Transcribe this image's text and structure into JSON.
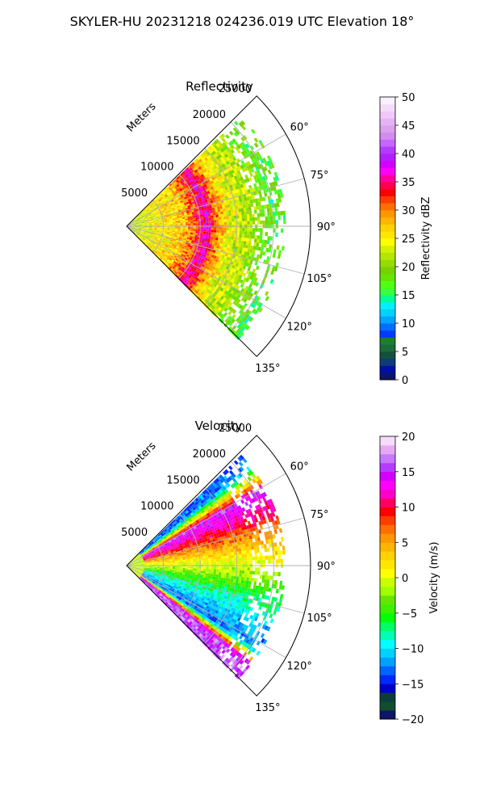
{
  "figure": {
    "title": "SKYLER-HU  20231218  024236.019 UTC Elevation 18°"
  },
  "chart_data": [
    {
      "type": "polar-sector",
      "title": "Reflectivity",
      "radial_label": "Meters",
      "radial_ticks": [
        5000,
        10000,
        15000,
        20000,
        25000
      ],
      "rlim": [
        0,
        25000
      ],
      "angular_ticks": [
        "60°",
        "75°",
        "90°",
        "105°",
        "120°",
        "135°"
      ],
      "angular_range_deg": [
        45,
        135
      ],
      "grid": true,
      "colorbar": {
        "label": "Reflectivity dBZ",
        "min": 0,
        "max": 50,
        "steps": 40,
        "ticks": [
          0,
          5,
          10,
          15,
          20,
          25,
          30,
          35,
          40,
          45,
          50
        ],
        "colors": [
          "#0c1566",
          "#000fa5",
          "#0d3c78",
          "#14503c",
          "#1b6b3b",
          "#1d7f30",
          "#003cff",
          "#006eff",
          "#00a5ff",
          "#00d2ff",
          "#00f0ff",
          "#00ff96",
          "#3cff3c",
          "#50ff14",
          "#64e600",
          "#78d200",
          "#96dc00",
          "#b4e600",
          "#d2f000",
          "#ffff00",
          "#ffe600",
          "#ffd200",
          "#ffb400",
          "#ff9600",
          "#ff6e00",
          "#ff3c00",
          "#ff0000",
          "#ff0050",
          "#ff00a0",
          "#ff00ff",
          "#d200ff",
          "#b41eff",
          "#b43cff",
          "#c864ff",
          "#d28cf0",
          "#dca0f0",
          "#e6b4f5",
          "#f0c8fa",
          "#f5dcfa",
          "#faf0ff"
        ]
      },
      "range_profile": [
        {
          "range_m": 1000,
          "dbz": 22
        },
        {
          "range_m": 4000,
          "dbz": 25
        },
        {
          "range_m": 7500,
          "dbz": 27
        },
        {
          "range_m": 9500,
          "dbz": 32
        },
        {
          "range_m": 10700,
          "dbz": 37
        },
        {
          "range_m": 12000,
          "dbz": 30
        },
        {
          "range_m": 14000,
          "dbz": 24
        },
        {
          "range_m": 17000,
          "dbz": 21
        },
        {
          "range_m": 20000,
          "dbz": 17
        }
      ],
      "echo_extent_m": 21500
    },
    {
      "type": "polar-sector",
      "title": "Velocity",
      "radial_label": "Meters",
      "radial_ticks": [
        5000,
        10000,
        15000,
        20000,
        25000
      ],
      "rlim": [
        0,
        25000
      ],
      "angular_ticks": [
        "60°",
        "75°",
        "90°",
        "105°",
        "120°",
        "135°"
      ],
      "angular_range_deg": [
        45,
        135
      ],
      "grid": true,
      "colorbar": {
        "label": "Velocity (m/s)",
        "min": -20,
        "max": 20,
        "steps": 32,
        "ticks": [
          -20,
          -15,
          -10,
          -5,
          0,
          5,
          10,
          15,
          20
        ],
        "colors": [
          "#0c1566",
          "#104e2e",
          "#0c3c3c",
          "#0000c8",
          "#0028ff",
          "#0064ff",
          "#00a0ff",
          "#00d2ff",
          "#00ffff",
          "#00ffb4",
          "#00ff64",
          "#00ff00",
          "#3cf000",
          "#64e600",
          "#a0ff00",
          "#c8ff00",
          "#ffff00",
          "#ffe600",
          "#ffd200",
          "#ffb400",
          "#ff9600",
          "#ff6e00",
          "#ff3c00",
          "#ff0000",
          "#ff0064",
          "#ff00c8",
          "#ff00ff",
          "#d200ff",
          "#b43cff",
          "#c878ff",
          "#e6aaf5",
          "#f5dcfa"
        ]
      },
      "azimuth_profile": [
        {
          "azimuth_deg": 50,
          "velocity_ms": -13
        },
        {
          "azimuth_deg": 60,
          "velocity_ms": 15
        },
        {
          "azimuth_deg": 68,
          "velocity_ms": 11
        },
        {
          "azimuth_deg": 78,
          "velocity_ms": 5
        },
        {
          "azimuth_deg": 86,
          "velocity_ms": 1
        },
        {
          "azimuth_deg": 94,
          "velocity_ms": -2
        },
        {
          "azimuth_deg": 104,
          "velocity_ms": -7
        },
        {
          "azimuth_deg": 114,
          "velocity_ms": -11
        },
        {
          "azimuth_deg": 122,
          "velocity_ms": -13
        },
        {
          "azimuth_deg": 128,
          "velocity_ms": 16
        }
      ],
      "echo_extent_m": 21500
    }
  ]
}
